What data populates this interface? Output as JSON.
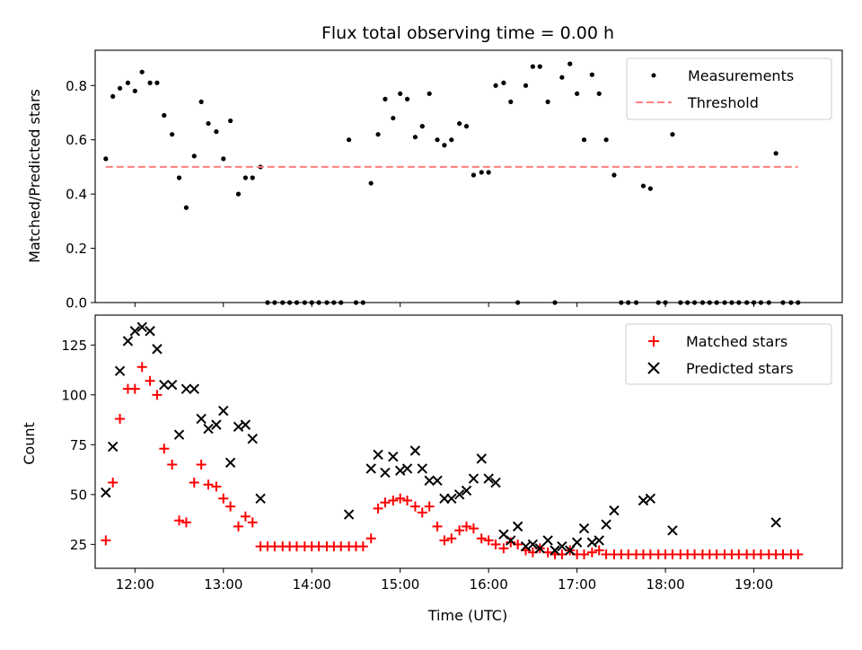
{
  "figure_title": "Flux total observing time = 0.00 h",
  "chart_data": [
    {
      "type": "scatter",
      "title": "Flux total observing time = 0.00 h",
      "xlabel": "",
      "ylabel": "Matched/Predicted stars",
      "xlim": [
        11.55,
        20.0
      ],
      "ylim": [
        0,
        0.93
      ],
      "yticks": [
        "0.0",
        "0.2",
        "0.4",
        "0.6",
        "0.8"
      ],
      "ytick_values": [
        0,
        0.2,
        0.4,
        0.6,
        0.8
      ],
      "xtick_values": [
        12,
        13,
        14,
        15,
        16,
        17,
        18,
        19
      ],
      "xtick_labels_visible": false,
      "legend_placement": "upper-right",
      "grid": false,
      "series": [
        {
          "name": "Measurements",
          "marker": "dot",
          "color": "#000000",
          "x": [
            11.67,
            11.75,
            11.83,
            11.92,
            12.0,
            12.08,
            12.17,
            12.25,
            12.33,
            12.42,
            12.5,
            12.58,
            12.67,
            12.75,
            12.83,
            12.92,
            13.0,
            13.08,
            13.17,
            13.25,
            13.33,
            13.42,
            13.5,
            13.58,
            13.67,
            13.75,
            13.83,
            13.92,
            14.0,
            14.08,
            14.17,
            14.25,
            14.33,
            14.42,
            14.5,
            14.58,
            14.67,
            14.75,
            14.83,
            14.92,
            15.0,
            15.08,
            15.17,
            15.25,
            15.33,
            15.42,
            15.5,
            15.58,
            15.67,
            15.75,
            15.83,
            15.92,
            16.0,
            16.08,
            16.17,
            16.25,
            16.33,
            16.42,
            16.5,
            16.58,
            16.67,
            16.75,
            16.83,
            16.92,
            17.0,
            17.08,
            17.17,
            17.25,
            17.33,
            17.42,
            17.5,
            17.58,
            17.67,
            17.75,
            17.83,
            17.92,
            18.0,
            18.08,
            18.17,
            18.25,
            18.33,
            18.42,
            18.5,
            18.58,
            18.67,
            18.75,
            18.83,
            18.92,
            19.0,
            19.08,
            19.17,
            19.25,
            19.33,
            19.42,
            19.5
          ],
          "y": [
            0.53,
            0.76,
            0.79,
            0.81,
            0.78,
            0.85,
            0.81,
            0.81,
            0.69,
            0.62,
            0.46,
            0.35,
            0.54,
            0.74,
            0.66,
            0.63,
            0.53,
            0.67,
            0.4,
            0.46,
            0.46,
            0.5,
            0,
            0,
            0,
            0,
            0,
            0,
            0,
            0,
            0,
            0,
            0,
            0.6,
            0,
            0,
            0.44,
            0.62,
            0.75,
            0.68,
            0.77,
            0.75,
            0.61,
            0.65,
            0.77,
            0.6,
            0.58,
            0.6,
            0.66,
            0.65,
            0.47,
            0.48,
            0.48,
            0.8,
            0.81,
            0.74,
            0,
            0.8,
            0.87,
            0.87,
            0.74,
            0,
            0.83,
            0.88,
            0.77,
            0.6,
            0.84,
            0.77,
            0.6,
            0.47,
            0,
            0,
            0,
            0.43,
            0.42,
            0,
            0,
            0.62,
            0,
            0,
            0,
            0,
            0,
            0,
            0,
            0,
            0,
            0,
            0,
            0,
            0,
            0.55,
            0,
            0,
            0
          ]
        },
        {
          "name": "Threshold",
          "style": "dashed",
          "color": "#ff7f7f",
          "x": [
            11.67,
            19.5
          ],
          "y": [
            0.5,
            0.5
          ]
        }
      ]
    },
    {
      "type": "scatter",
      "title": "",
      "xlabel": "Time (UTC)",
      "ylabel": "Count",
      "xlim": [
        11.55,
        20.0
      ],
      "ylim": [
        13,
        140
      ],
      "yticks": [
        "25",
        "50",
        "75",
        "100",
        "125"
      ],
      "ytick_values": [
        25,
        50,
        75,
        100,
        125
      ],
      "xtick_values": [
        12,
        13,
        14,
        15,
        16,
        17,
        18,
        19
      ],
      "xticks": [
        "12:00",
        "13:00",
        "14:00",
        "15:00",
        "16:00",
        "17:00",
        "18:00",
        "19:00"
      ],
      "legend_placement": "upper-right",
      "grid": false,
      "series": [
        {
          "name": "Matched stars",
          "marker": "plus",
          "color": "#ff0000",
          "x": [
            11.67,
            11.75,
            11.83,
            11.92,
            12.0,
            12.08,
            12.17,
            12.25,
            12.33,
            12.42,
            12.5,
            12.58,
            12.67,
            12.75,
            12.83,
            12.92,
            13.0,
            13.08,
            13.17,
            13.25,
            13.33,
            13.42,
            13.5,
            13.58,
            13.67,
            13.75,
            13.83,
            13.92,
            14.0,
            14.08,
            14.17,
            14.25,
            14.33,
            14.42,
            14.5,
            14.58,
            14.67,
            14.75,
            14.83,
            14.92,
            15.0,
            15.08,
            15.17,
            15.25,
            15.33,
            15.42,
            15.5,
            15.58,
            15.67,
            15.75,
            15.83,
            15.92,
            16.0,
            16.08,
            16.17,
            16.25,
            16.33,
            16.42,
            16.5,
            16.58,
            16.67,
            16.75,
            16.83,
            16.92,
            17.0,
            17.08,
            17.17,
            17.25,
            17.33,
            17.42,
            17.5,
            17.58,
            17.67,
            17.75,
            17.83,
            17.92,
            18.0,
            18.08,
            18.17,
            18.25,
            18.33,
            18.42,
            18.5,
            18.58,
            18.67,
            18.75,
            18.83,
            18.92,
            19.0,
            19.08,
            19.17,
            19.25,
            19.33,
            19.42,
            19.5
          ],
          "y": [
            27,
            56,
            88,
            103,
            103,
            114,
            107,
            100,
            73,
            65,
            37,
            36,
            56,
            65,
            55,
            54,
            48,
            44,
            34,
            39,
            36,
            24,
            24,
            24,
            24,
            24,
            24,
            24,
            24,
            24,
            24,
            24,
            24,
            24,
            24,
            24,
            28,
            43,
            46,
            47,
            48,
            47,
            44,
            41,
            44,
            34,
            27,
            28,
            32,
            34,
            33,
            28,
            27,
            25,
            23,
            26,
            25,
            22,
            21,
            23,
            21,
            20,
            20,
            22,
            20,
            20,
            21,
            22,
            20,
            20,
            20,
            20,
            20,
            20,
            20,
            20,
            20,
            20,
            20,
            20,
            20,
            20,
            20,
            20,
            20,
            20,
            20,
            20,
            20,
            20,
            20,
            20,
            20,
            20,
            20
          ]
        },
        {
          "name": "Predicted stars",
          "marker": "x",
          "color": "#000000",
          "x": [
            11.67,
            11.75,
            11.83,
            11.92,
            12.0,
            12.08,
            12.17,
            12.25,
            12.33,
            12.42,
            12.5,
            12.58,
            12.67,
            12.75,
            12.83,
            12.92,
            13.0,
            13.08,
            13.17,
            13.25,
            13.33,
            13.42,
            14.42,
            14.67,
            14.75,
            14.83,
            14.92,
            15.0,
            15.08,
            15.17,
            15.25,
            15.33,
            15.42,
            15.5,
            15.58,
            15.67,
            15.75,
            15.83,
            15.92,
            16.0,
            16.08,
            16.17,
            16.25,
            16.33,
            16.42,
            16.5,
            16.58,
            16.67,
            16.75,
            16.83,
            16.92,
            17.0,
            17.08,
            17.17,
            17.25,
            17.33,
            17.42,
            17.75,
            17.83,
            18.08,
            19.25
          ],
          "y": [
            51,
            74,
            112,
            127,
            132,
            134,
            132,
            123,
            105,
            105,
            80,
            103,
            103,
            88,
            83,
            85,
            92,
            66,
            84,
            85,
            78,
            48,
            40,
            63,
            70,
            61,
            69,
            62,
            63,
            72,
            63,
            57,
            57,
            48,
            48,
            50,
            52,
            58,
            68,
            58,
            56,
            30,
            27,
            34,
            24,
            25,
            23,
            27,
            22,
            24,
            22,
            26,
            33,
            26,
            27,
            35,
            42,
            47,
            48,
            32,
            36
          ]
        }
      ]
    }
  ]
}
